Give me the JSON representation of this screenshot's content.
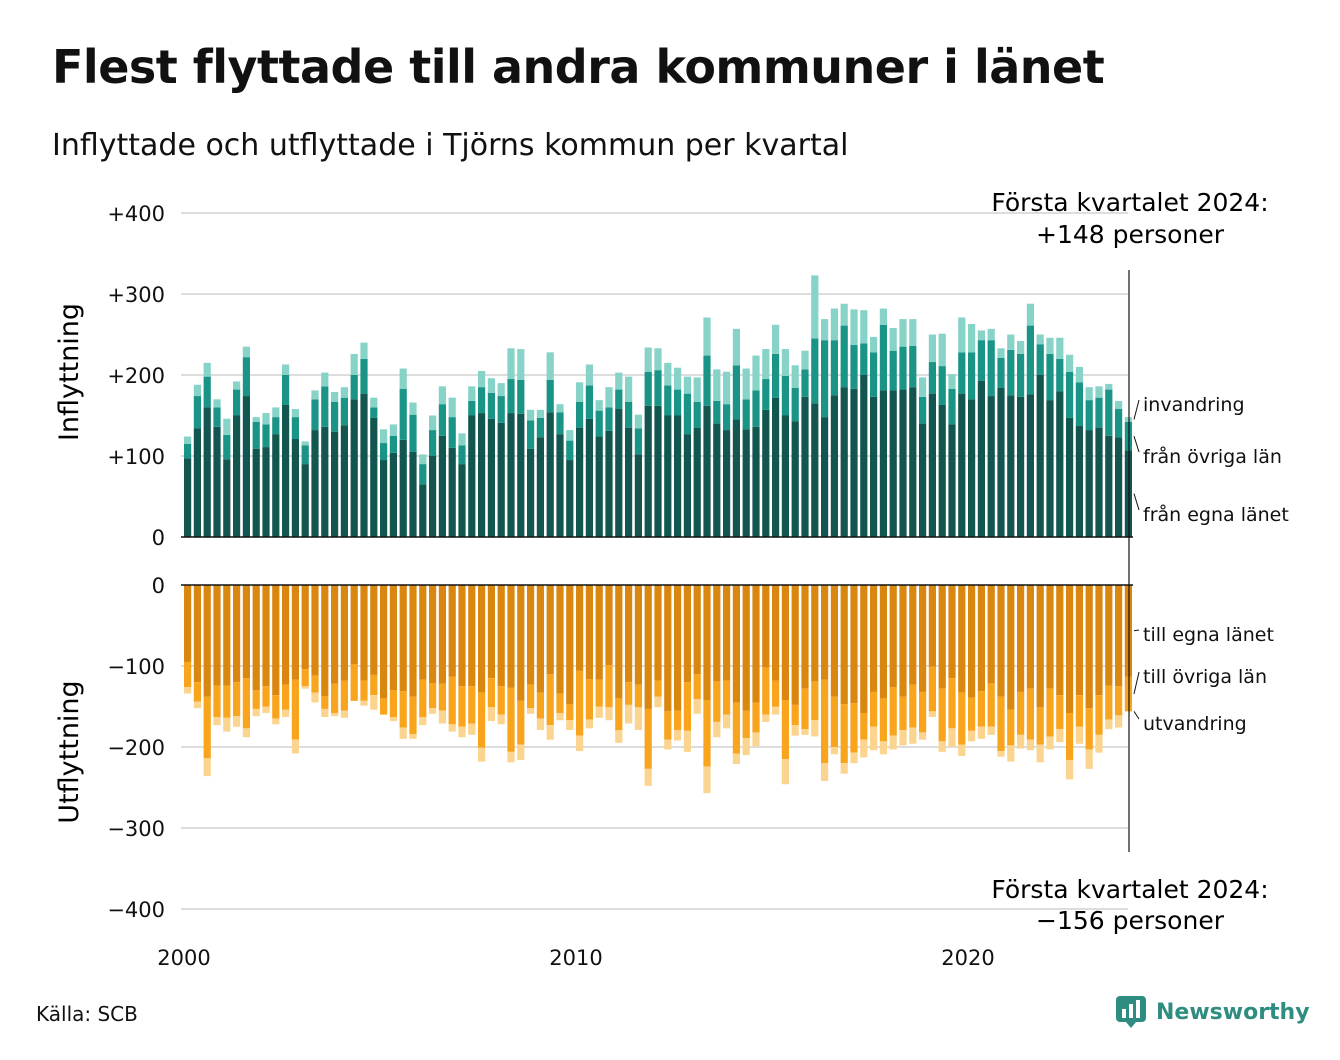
{
  "title": "Flest flyttade till andra kommuner i länet",
  "subtitle": "Inflyttade och utflyttade i Tjörns kommun per kvartal",
  "source": "Källa: SCB",
  "brand": "Newsworthy",
  "chart_data": {
    "type": "bar",
    "stacked": true,
    "x_start": "2000 Q1",
    "x_end": "2024 Q1",
    "x_ticks": [
      "2000",
      "2010",
      "2020"
    ],
    "y_ticks_top": [
      "+400",
      "+300",
      "+200",
      "+100",
      "0"
    ],
    "y_ticks_bottom": [
      "0",
      "−100",
      "−200",
      "−300",
      "−400"
    ],
    "ylim_top": [
      0,
      400
    ],
    "ylim_bottom": [
      -400,
      0
    ],
    "ylabel_top": "Inflyttning",
    "ylabel_bottom": "Utflyttning",
    "annotation_top": [
      "Första kvartalet 2024:",
      "+148 personer"
    ],
    "annotation_bottom": [
      "Första kvartalet 2024:",
      "−156 personer"
    ],
    "colors": {
      "in_own": "#12564f",
      "in_other": "#1a9486",
      "in_abroad": "#88d3c8",
      "out_own": "#d9870e",
      "out_other": "#f9a41d",
      "out_abroad": "#fbd58f",
      "grid": "#dddddd"
    },
    "series": [
      {
        "name": "från egna länet",
        "group": "in",
        "values": [
          97,
          134,
          160,
          136,
          96,
          150,
          174,
          109,
          111,
          127,
          163,
          121,
          90,
          132,
          136,
          130,
          138,
          170,
          177,
          147,
          95,
          104,
          120,
          105,
          65,
          100,
          125,
          110,
          90,
          150,
          153,
          146,
          141,
          153,
          152,
          109,
          123,
          154,
          127,
          95,
          135,
          146,
          124,
          131,
          158,
          135,
          102,
          162,
          162,
          150,
          150,
          127,
          135,
          162,
          140,
          132,
          145,
          133,
          136,
          157,
          172,
          150,
          143,
          173,
          165,
          148,
          175,
          185,
          183,
          200,
          173,
          181,
          181,
          182,
          185,
          140,
          177,
          163,
          139,
          177,
          170,
          193,
          174,
          184,
          175,
          173,
          176,
          200,
          169,
          180,
          147,
          137,
          132,
          135,
          125,
          123,
          107
        ]
      },
      {
        "name": "från övriga län",
        "group": "in",
        "values": [
          18,
          40,
          38,
          24,
          30,
          32,
          48,
          33,
          28,
          21,
          37,
          27,
          23,
          38,
          50,
          37,
          34,
          30,
          43,
          13,
          21,
          21,
          63,
          46,
          25,
          32,
          39,
          38,
          23,
          18,
          32,
          32,
          33,
          42,
          42,
          35,
          24,
          40,
          27,
          24,
          32,
          41,
          32,
          29,
          24,
          32,
          32,
          42,
          44,
          37,
          32,
          50,
          32,
          62,
          28,
          32,
          67,
          37,
          45,
          38,
          54,
          49,
          41,
          34,
          80,
          95,
          68,
          76,
          54,
          39,
          55,
          81,
          49,
          53,
          51,
          33,
          39,
          48,
          44,
          51,
          58,
          50,
          69,
          37,
          56,
          53,
          85,
          38,
          57,
          40,
          57,
          54,
          37,
          37,
          57,
          35,
          35
        ]
      },
      {
        "name": "invandring",
        "group": "in",
        "values": [
          9,
          14,
          17,
          10,
          20,
          10,
          13,
          6,
          14,
          12,
          13,
          10,
          5,
          11,
          17,
          12,
          13,
          26,
          20,
          12,
          17,
          14,
          25,
          15,
          12,
          18,
          22,
          24,
          15,
          18,
          20,
          18,
          16,
          38,
          38,
          13,
          10,
          34,
          10,
          13,
          24,
          26,
          13,
          25,
          21,
          31,
          17,
          30,
          27,
          28,
          27,
          21,
          30,
          47,
          39,
          40,
          45,
          38,
          43,
          37,
          36,
          33,
          28,
          23,
          78,
          26,
          39,
          27,
          44,
          41,
          19,
          20,
          28,
          34,
          33,
          24,
          34,
          40,
          18,
          43,
          35,
          12,
          14,
          12,
          19,
          16,
          27,
          12,
          20,
          26,
          21,
          19,
          16,
          14,
          7,
          10,
          6
        ]
      },
      {
        "name": "till egna länet",
        "group": "out",
        "values": [
          95,
          120,
          138,
          124,
          124,
          120,
          115,
          130,
          125,
          136,
          123,
          117,
          104,
          112,
          137,
          122,
          118,
          98,
          118,
          111,
          140,
          130,
          131,
          138,
          117,
          121,
          122,
          113,
          125,
          125,
          133,
          115,
          125,
          127,
          143,
          123,
          133,
          110,
          134,
          147,
          106,
          116,
          117,
          99,
          140,
          120,
          123,
          153,
          118,
          156,
          155,
          120,
          110,
          142,
          119,
          118,
          145,
          155,
          145,
          102,
          118,
          142,
          148,
          128,
          119,
          117,
          138,
          147,
          146,
          158,
          132,
          140,
          126,
          138,
          123,
          132,
          101,
          128,
          115,
          133,
          139,
          131,
          121,
          138,
          154,
          132,
          128,
          151,
          128,
          136,
          158,
          136,
          152,
          136,
          124,
          125,
          113
        ]
      },
      {
        "name": "till övriga län",
        "group": "out",
        "values": [
          31,
          24,
          76,
          39,
          40,
          42,
          62,
          23,
          25,
          29,
          31,
          74,
          21,
          21,
          16,
          36,
          37,
          45,
          25,
          25,
          20,
          33,
          45,
          46,
          46,
          31,
          33,
          59,
          50,
          46,
          68,
          36,
          35,
          79,
          54,
          29,
          32,
          63,
          24,
          20,
          80,
          50,
          33,
          52,
          39,
          28,
          28,
          74,
          20,
          35,
          24,
          60,
          31,
          82,
          50,
          42,
          63,
          34,
          37,
          58,
          32,
          73,
          25,
          50,
          48,
          103,
          62,
          73,
          61,
          33,
          43,
          53,
          60,
          41,
          53,
          50,
          55,
          65,
          62,
          64,
          41,
          44,
          54,
          67,
          44,
          53,
          63,
          46,
          59,
          42,
          58,
          39,
          51,
          49,
          42,
          36,
          43
        ]
      },
      {
        "name": "utvandring",
        "group": "out",
        "values": [
          8,
          8,
          22,
          10,
          17,
          13,
          11,
          9,
          8,
          7,
          9,
          17,
          3,
          12,
          10,
          4,
          9,
          0,
          6,
          18,
          0,
          5,
          14,
          6,
          10,
          7,
          16,
          9,
          13,
          14,
          17,
          17,
          12,
          13,
          19,
          7,
          14,
          18,
          9,
          12,
          19,
          11,
          14,
          16,
          16,
          23,
          28,
          21,
          13,
          12,
          13,
          26,
          18,
          33,
          19,
          17,
          13,
          21,
          17,
          9,
          10,
          31,
          13,
          7,
          20,
          22,
          9,
          13,
          13,
          22,
          29,
          16,
          17,
          19,
          20,
          9,
          7,
          13,
          23,
          14,
          13,
          15,
          10,
          7,
          20,
          17,
          13,
          22,
          16,
          16,
          24,
          21,
          24,
          22,
          12,
          15,
          0
        ]
      }
    ]
  }
}
